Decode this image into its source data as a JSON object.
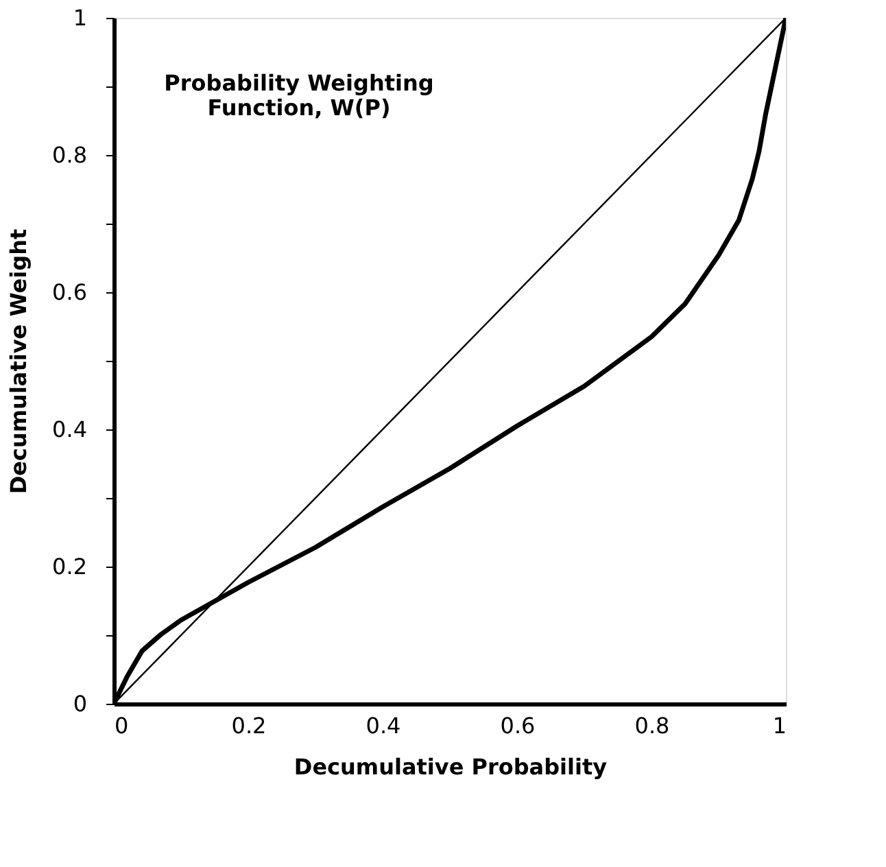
{
  "chart_data": {
    "type": "line",
    "title": "Probability Weighting\nFunction, W(P)",
    "xlabel": "Decumulative Probability",
    "ylabel": "Decumulative Weight",
    "series": [
      {
        "color": "#000000",
        "x": [
          0,
          0.02,
          0.042,
          0.07,
          0.1,
          0.14,
          0.2,
          0.3,
          0.4,
          0.5,
          0.6,
          0.7,
          0.8,
          0.85,
          0.9,
          0.93,
          0.95,
          0.96,
          0.97,
          0.985,
          1
        ],
        "values": [
          0,
          0.04,
          0.077,
          0.101,
          0.122,
          0.144,
          0.177,
          0.228,
          0.287,
          0.343,
          0.405,
          0.463,
          0.535,
          0.583,
          0.654,
          0.705,
          0.765,
          0.805,
          0.86,
          0.93,
          1
        ]
      },
      {
        "color": "#000000",
        "x": [
          0,
          1
        ],
        "values": [
          0,
          1
        ]
      }
    ],
    "xlim": [
      0,
      1
    ],
    "ylim": [
      0,
      1
    ],
    "xticks": [
      0,
      0.2,
      0.4,
      0.6,
      0.8,
      1
    ],
    "yticks": [
      0,
      {
        "value": 0.1,
        "label": null
      },
      0.2,
      {
        "value": 0.3,
        "label": null
      },
      0.4,
      {
        "value": 0.5,
        "label": null
      },
      0.6,
      {
        "value": 0.7,
        "label": null
      },
      0.8,
      {
        "value": 0.9,
        "label": null
      },
      1
    ],
    "grid": false,
    "marker": "none",
    "line_style": "solid"
  }
}
